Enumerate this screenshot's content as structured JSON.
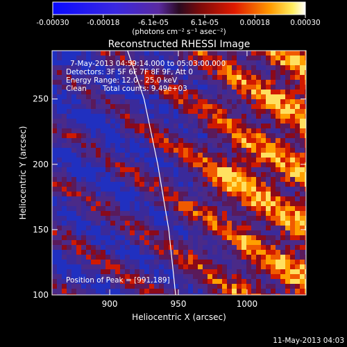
{
  "chart_data": {
    "type": "heatmap",
    "title": "Reconstructed RHESSI Image",
    "xlabel": "Heliocentric X (arcsec)",
    "ylabel": "Heliocentric Y (arcsec)",
    "xlim": [
      858,
      1043
    ],
    "ylim": [
      100,
      287
    ],
    "x_ticks": [
      900,
      950,
      1000
    ],
    "x_tick_labels": [
      "900",
      "950",
      "1000"
    ],
    "y_ticks": [
      100,
      150,
      200,
      250
    ],
    "y_tick_labels": [
      "100",
      "150",
      "200",
      "250"
    ],
    "colorbar": {
      "range": [
        -0.0003,
        0.0003
      ],
      "ticks": [
        -0.0003,
        -0.00018,
        -6.1e-05,
        6.1e-05,
        0.00018,
        0.0003
      ],
      "tick_labels": [
        "-0.00030",
        "-0.00018",
        "-6.1e-05",
        "6.1e-05",
        "0.00018",
        "0.00030"
      ],
      "units_label": "(photons cm⁻² s⁻¹ asec⁻²)"
    },
    "annotations": [
      "7-May-2013 04:59:14.000 to 05:03:00.000",
      "Detectors: 3F 5F 6F 7F 8F 9F, Att 0",
      "Energy Range: 12.0 - 25.0 keV",
      "Clean",
      "Total counts: 9.49e+03",
      "Position of Peak = [991,189]"
    ],
    "peak_position": [
      991,
      189
    ],
    "limb_curve": [
      [
        913,
        287
      ],
      [
        925,
        250
      ],
      [
        935,
        200
      ],
      [
        943,
        150
      ],
      [
        948,
        100
      ]
    ],
    "grid": false,
    "legend": "none"
  },
  "footer_timestamp": "11-May-2013 04:03"
}
